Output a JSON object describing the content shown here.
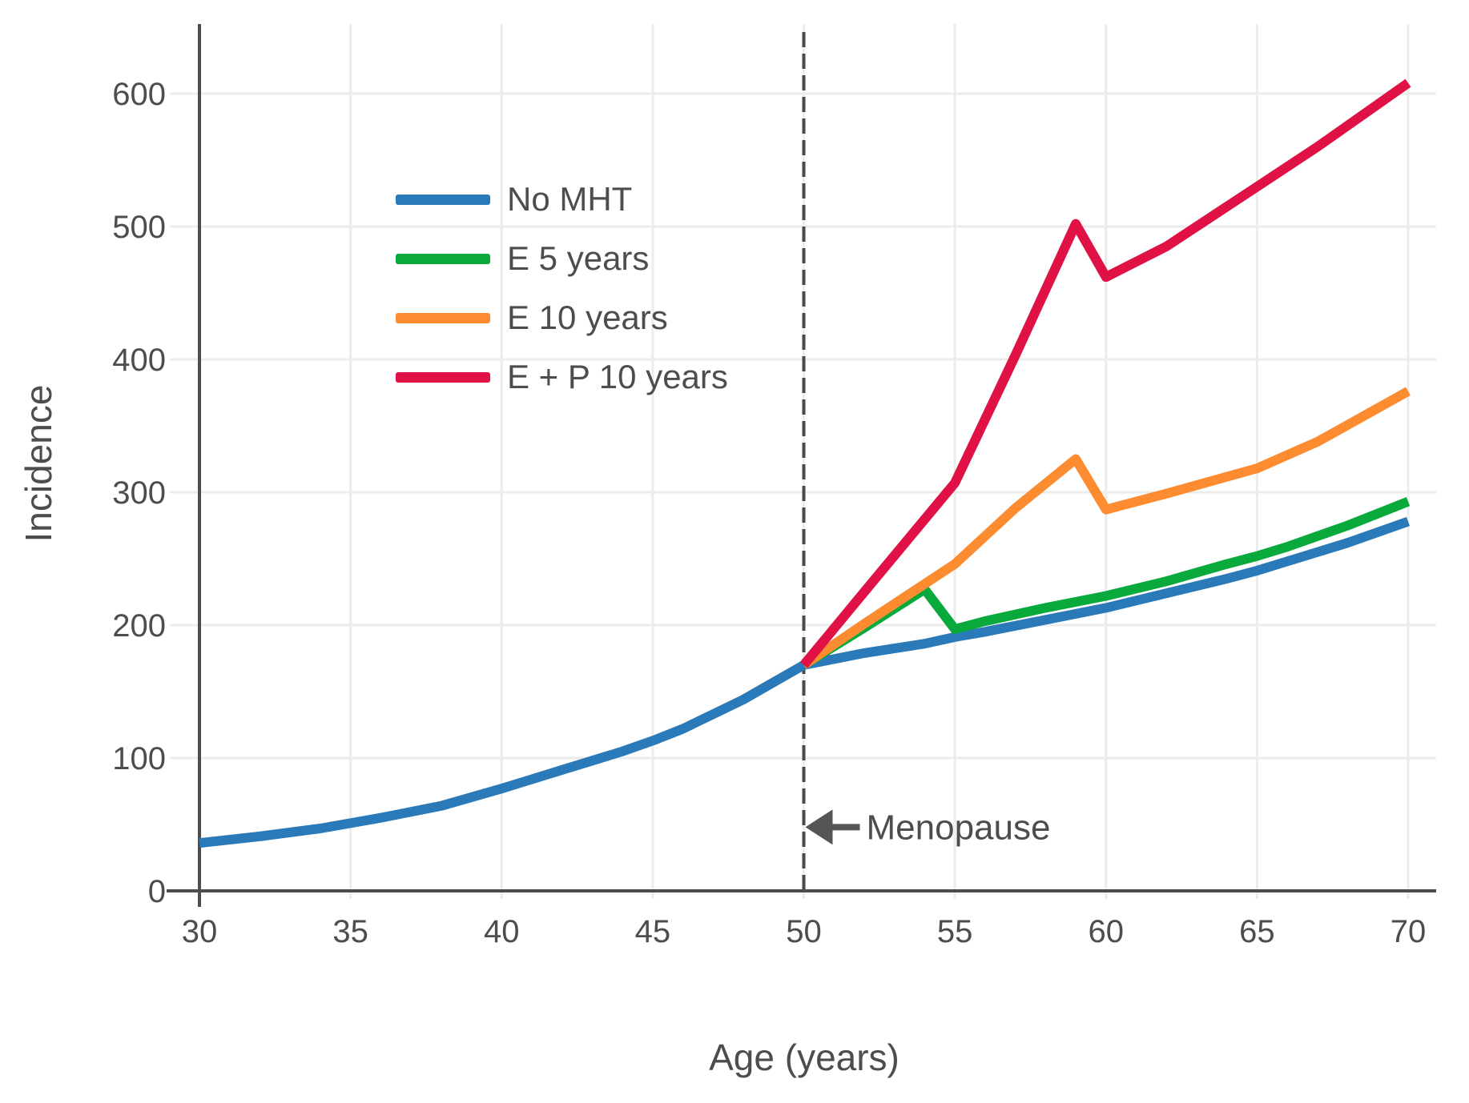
{
  "chart_data": {
    "type": "line",
    "title": "",
    "xlabel": "Age (years)",
    "ylabel": "Incidence",
    "x_ticks": [
      30,
      35,
      40,
      45,
      50,
      55,
      60,
      65,
      70
    ],
    "y_ticks": [
      0,
      100,
      200,
      300,
      400,
      500,
      600
    ],
    "xlim": [
      30,
      70.9
    ],
    "ylim": [
      0,
      655
    ],
    "grid": true,
    "legend_position": "upper-left-inside",
    "series": [
      {
        "name": "No MHT",
        "color": "#2a7ab9",
        "points": [
          [
            30,
            36
          ],
          [
            32,
            41
          ],
          [
            34,
            47
          ],
          [
            36,
            55
          ],
          [
            38,
            64
          ],
          [
            40,
            77
          ],
          [
            42,
            91
          ],
          [
            44,
            105
          ],
          [
            45,
            113
          ],
          [
            46,
            122
          ],
          [
            48,
            144
          ],
          [
            50,
            170
          ],
          [
            52,
            179
          ],
          [
            54,
            186
          ],
          [
            55,
            191
          ],
          [
            56,
            195
          ],
          [
            58,
            204
          ],
          [
            60,
            213
          ],
          [
            62,
            224
          ],
          [
            64,
            235
          ],
          [
            65,
            241
          ],
          [
            66,
            248
          ],
          [
            68,
            262
          ],
          [
            70,
            278
          ]
        ]
      },
      {
        "name": "E 5 years",
        "color": "#0aa93c",
        "points": [
          [
            50,
            170
          ],
          [
            52,
            198
          ],
          [
            54,
            227
          ],
          [
            55,
            197
          ],
          [
            56,
            203
          ],
          [
            58,
            213
          ],
          [
            60,
            222
          ],
          [
            62,
            233
          ],
          [
            64,
            246
          ],
          [
            65,
            252
          ],
          [
            66,
            259
          ],
          [
            68,
            275
          ],
          [
            70,
            293
          ]
        ]
      },
      {
        "name": "E 10 years",
        "color": "#fd8c31",
        "points": [
          [
            50,
            170
          ],
          [
            52,
            201
          ],
          [
            55,
            246
          ],
          [
            57,
            288
          ],
          [
            59,
            325
          ],
          [
            60,
            287
          ],
          [
            62,
            299
          ],
          [
            65,
            318
          ],
          [
            67,
            338
          ],
          [
            70,
            376
          ]
        ]
      },
      {
        "name": "E + P 10 years",
        "color": "#e01144",
        "points": [
          [
            50,
            170
          ],
          [
            52,
            225
          ],
          [
            55,
            307
          ],
          [
            57,
            403
          ],
          [
            59,
            502
          ],
          [
            60,
            462
          ],
          [
            62,
            485
          ],
          [
            65,
            530
          ],
          [
            67,
            560
          ],
          [
            70,
            608
          ]
        ]
      }
    ],
    "vline": {
      "x": 50,
      "style": "dashed",
      "color": "#4a4a4a"
    },
    "annotations": [
      {
        "text": "Menopause",
        "arrow": "left",
        "x": 50,
        "y": 48
      }
    ],
    "colors": {
      "axis": "#4d4d4d",
      "grid": "#ececec",
      "text": "#4d4d4d"
    }
  }
}
